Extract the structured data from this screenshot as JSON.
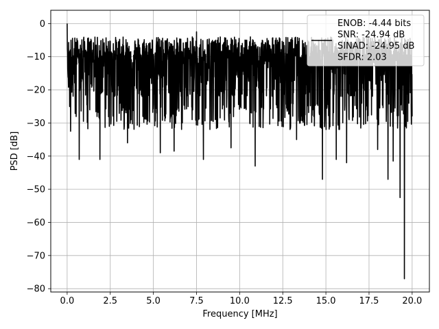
{
  "chart_data": {
    "type": "line",
    "title": "",
    "xlabel": "Frequency [MHz]",
    "ylabel": "PSD [dB]",
    "xlim": [
      -0.95,
      21.0
    ],
    "ylim": [
      -81,
      4
    ],
    "xticks": [
      0.0,
      2.5,
      5.0,
      7.5,
      10.0,
      12.5,
      15.0,
      17.5,
      20.0
    ],
    "xtick_labels": [
      "0.0",
      "2.5",
      "5.0",
      "7.5",
      "10.0",
      "12.5",
      "15.0",
      "17.5",
      "20.0"
    ],
    "yticks": [
      0,
      -10,
      -20,
      -30,
      -40,
      -50,
      -60,
      -70,
      -80
    ],
    "ytick_labels": [
      "0",
      "−10",
      "−20",
      "−30",
      "−40",
      "−50",
      "−60",
      "−70",
      "−80"
    ],
    "grid": true,
    "legend": {
      "placement": "top-right",
      "line_color": "#000000",
      "entries": [
        "ENOB: -4.44 bits",
        "SNR: -24.94 dB",
        "SINAD: -24.95 dB",
        "SFDR: 2.03"
      ]
    },
    "series": [
      {
        "color": "#000000",
        "x_start": 0.0,
        "x_end": 20.0,
        "noise_floor_envelope": {
          "upper_approx": -8,
          "lower_approx": -30
        },
        "key_points": [
          {
            "x": 0.0,
            "y": 0.0
          },
          {
            "x": 0.1,
            "y": -14
          },
          {
            "x": 0.2,
            "y": -32.5
          },
          {
            "x": 0.7,
            "y": -41
          },
          {
            "x": 1.9,
            "y": -41
          },
          {
            "x": 3.5,
            "y": -36
          },
          {
            "x": 5.4,
            "y": -39
          },
          {
            "x": 6.2,
            "y": -38.5
          },
          {
            "x": 7.5,
            "y": -2.5
          },
          {
            "x": 7.9,
            "y": -41
          },
          {
            "x": 9.5,
            "y": -37.5
          },
          {
            "x": 10.9,
            "y": -43
          },
          {
            "x": 13.3,
            "y": -35
          },
          {
            "x": 14.8,
            "y": -47
          },
          {
            "x": 15.6,
            "y": -41
          },
          {
            "x": 16.2,
            "y": -42
          },
          {
            "x": 18.0,
            "y": -38
          },
          {
            "x": 18.6,
            "y": -47
          },
          {
            "x": 18.9,
            "y": -41.5
          },
          {
            "x": 19.3,
            "y": -52.5
          },
          {
            "x": 19.55,
            "y": -77
          },
          {
            "x": 20.0,
            "y": -28
          }
        ]
      }
    ]
  }
}
